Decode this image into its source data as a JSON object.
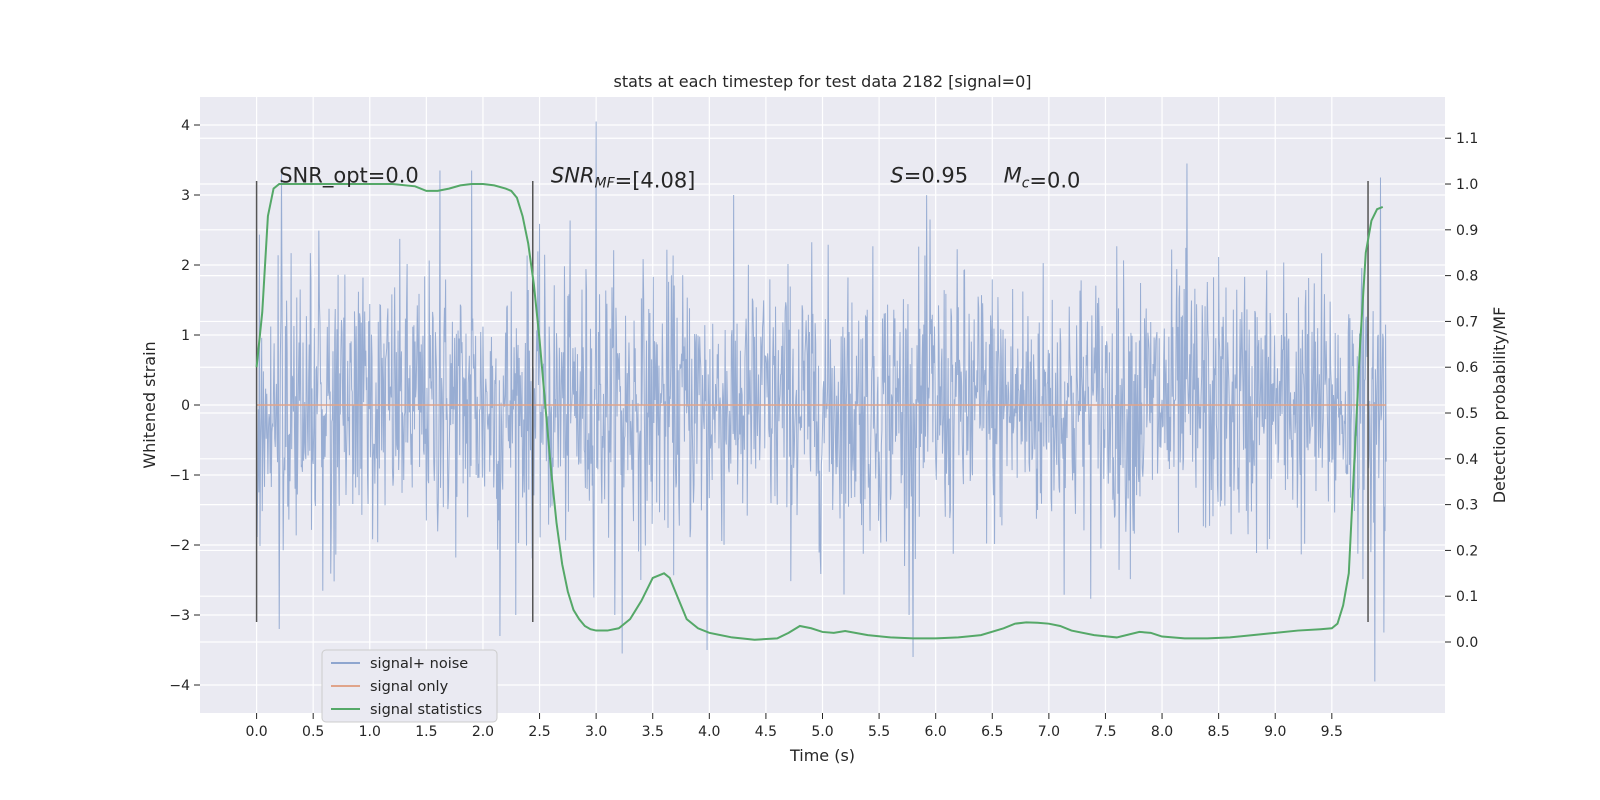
{
  "chart_data": {
    "type": "line",
    "title": "stats at each timestep for test data 2182 [signal=0]",
    "xlabel": "Time (s)",
    "ylabel": "Whitened strain",
    "y2label": "Detection probability/MF",
    "xlim": [
      -0.5,
      10.5
    ],
    "ylim": [
      -4.4,
      4.4
    ],
    "y2lim": [
      -0.155,
      1.19
    ],
    "x_ticks": [
      0.0,
      0.5,
      1.0,
      1.5,
      2.0,
      2.5,
      3.0,
      3.5,
      4.0,
      4.5,
      5.0,
      5.5,
      6.0,
      6.5,
      7.0,
      7.5,
      8.0,
      8.5,
      9.0,
      9.5
    ],
    "x_tick_labels": [
      "0.0",
      "0.5",
      "1.0",
      "1.5",
      "2.0",
      "2.5",
      "3.0",
      "3.5",
      "4.0",
      "4.5",
      "5.0",
      "5.5",
      "6.0",
      "6.5",
      "7.0",
      "7.5",
      "8.0",
      "8.5",
      "9.0",
      "9.5"
    ],
    "y_ticks": [
      4,
      3,
      2,
      1,
      0,
      -1,
      -2,
      -3,
      -4
    ],
    "y_tick_labels": [
      "4",
      "3",
      "2",
      "1",
      "0",
      "−1",
      "−2",
      "−3",
      "−4"
    ],
    "y2_ticks": [
      1.1,
      1.0,
      0.9,
      0.8,
      0.7,
      0.6,
      0.5,
      0.4,
      0.3,
      0.2,
      0.1,
      0.0
    ],
    "y2_tick_labels": [
      "1.1",
      "1.0",
      "0.9",
      "0.8",
      "0.7",
      "0.6",
      "0.5",
      "0.4",
      "0.3",
      "0.2",
      "0.1",
      "0.0"
    ],
    "grid": true,
    "legend_position": "lower-left",
    "series": [
      {
        "name": "signal+ noise",
        "color": "#8fa6cf",
        "axis": "left",
        "kind": "noise-trace",
        "x_range": [
          0.0,
          9.98
        ],
        "sample_rate_hz": 200,
        "std": 0.95,
        "peaks": [
          {
            "x": 0.22,
            "y": 3.3
          },
          {
            "x": 1.62,
            "y": 3.35
          },
          {
            "x": 1.9,
            "y": 3.35
          },
          {
            "x": 3.0,
            "y": 4.05
          },
          {
            "x": 8.22,
            "y": 3.45
          },
          {
            "x": 9.93,
            "y": 3.25
          },
          {
            "x": 0.2,
            "y": -3.2
          },
          {
            "x": 2.15,
            "y": -3.3
          },
          {
            "x": 3.23,
            "y": -3.55
          },
          {
            "x": 3.98,
            "y": -3.5
          },
          {
            "x": 5.8,
            "y": -3.6
          },
          {
            "x": 9.88,
            "y": -3.95
          },
          {
            "x": 9.96,
            "y": -3.25
          },
          {
            "x": 5.95,
            "y": 2.65
          }
        ]
      },
      {
        "name": "signal only",
        "color": "#e0a48a",
        "axis": "left",
        "x": [
          0.0,
          9.98
        ],
        "y": [
          0.0,
          0.0
        ]
      },
      {
        "name": "signal statistics",
        "color": "#55a868",
        "axis": "right",
        "x": [
          0.0,
          0.05,
          0.1,
          0.15,
          0.2,
          0.3,
          0.5,
          0.8,
          1.0,
          1.2,
          1.4,
          1.5,
          1.6,
          1.7,
          1.8,
          1.9,
          2.0,
          2.1,
          2.2,
          2.25,
          2.3,
          2.35,
          2.4,
          2.45,
          2.5,
          2.55,
          2.6,
          2.65,
          2.7,
          2.75,
          2.8,
          2.85,
          2.9,
          2.95,
          3.0,
          3.1,
          3.2,
          3.3,
          3.4,
          3.5,
          3.6,
          3.65,
          3.7,
          3.75,
          3.8,
          3.9,
          4.0,
          4.2,
          4.4,
          4.6,
          4.7,
          4.8,
          4.9,
          5.0,
          5.1,
          5.2,
          5.4,
          5.6,
          5.8,
          6.0,
          6.2,
          6.4,
          6.6,
          6.7,
          6.8,
          6.9,
          7.0,
          7.1,
          7.2,
          7.4,
          7.6,
          7.8,
          7.9,
          8.0,
          8.2,
          8.4,
          8.6,
          8.8,
          9.0,
          9.2,
          9.4,
          9.5,
          9.55,
          9.6,
          9.65,
          9.7,
          9.75,
          9.8,
          9.85,
          9.9,
          9.95
        ],
        "y": [
          0.6,
          0.72,
          0.93,
          0.99,
          1.0,
          1.0,
          1.0,
          1.0,
          1.0,
          1.0,
          0.995,
          0.985,
          0.985,
          0.99,
          0.997,
          1.0,
          1.0,
          0.997,
          0.99,
          0.985,
          0.97,
          0.93,
          0.87,
          0.78,
          0.66,
          0.52,
          0.38,
          0.26,
          0.17,
          0.11,
          0.07,
          0.05,
          0.035,
          0.028,
          0.025,
          0.025,
          0.03,
          0.05,
          0.09,
          0.14,
          0.15,
          0.14,
          0.11,
          0.08,
          0.05,
          0.03,
          0.02,
          0.01,
          0.005,
          0.008,
          0.02,
          0.035,
          0.03,
          0.022,
          0.02,
          0.024,
          0.015,
          0.01,
          0.008,
          0.008,
          0.01,
          0.015,
          0.03,
          0.04,
          0.043,
          0.042,
          0.04,
          0.035,
          0.025,
          0.015,
          0.01,
          0.022,
          0.02,
          0.012,
          0.008,
          0.008,
          0.01,
          0.015,
          0.02,
          0.025,
          0.028,
          0.03,
          0.04,
          0.08,
          0.15,
          0.4,
          0.65,
          0.85,
          0.92,
          0.945,
          0.95
        ]
      }
    ],
    "vertical_lines": {
      "color": "#555555",
      "x": [
        0.0,
        2.44,
        9.82
      ],
      "y_range": [
        -3.1,
        3.2
      ]
    },
    "annotations": [
      {
        "x": 0.2,
        "y": 3.18,
        "text": "SNR_opt=0.0",
        "parts": [
          {
            "t": "SNR_opt=0.0",
            "style": "normal"
          }
        ]
      },
      {
        "x": 2.6,
        "y": 3.18,
        "text": "SNR_MF=[4.08]",
        "parts": [
          {
            "t": "SNR",
            "style": "italic"
          },
          {
            "t": "MF",
            "style": "italic-sub"
          },
          {
            "t": "=[4.08]",
            "style": "normal"
          }
        ]
      },
      {
        "x": 5.6,
        "y": 3.18,
        "text": "S=0.95",
        "parts": [
          {
            "t": "S",
            "style": "italic"
          },
          {
            "t": "=0.95",
            "style": "normal"
          }
        ]
      },
      {
        "x": 6.6,
        "y": 3.18,
        "text": "M_c=0.0",
        "parts": [
          {
            "t": "M",
            "style": "italic"
          },
          {
            "t": "c",
            "style": "italic-sub"
          },
          {
            "t": "=0.0",
            "style": "normal"
          }
        ]
      }
    ],
    "colors": {
      "plot_background": "#eaeaf2",
      "grid": "#ffffff",
      "text": "#262626"
    }
  }
}
